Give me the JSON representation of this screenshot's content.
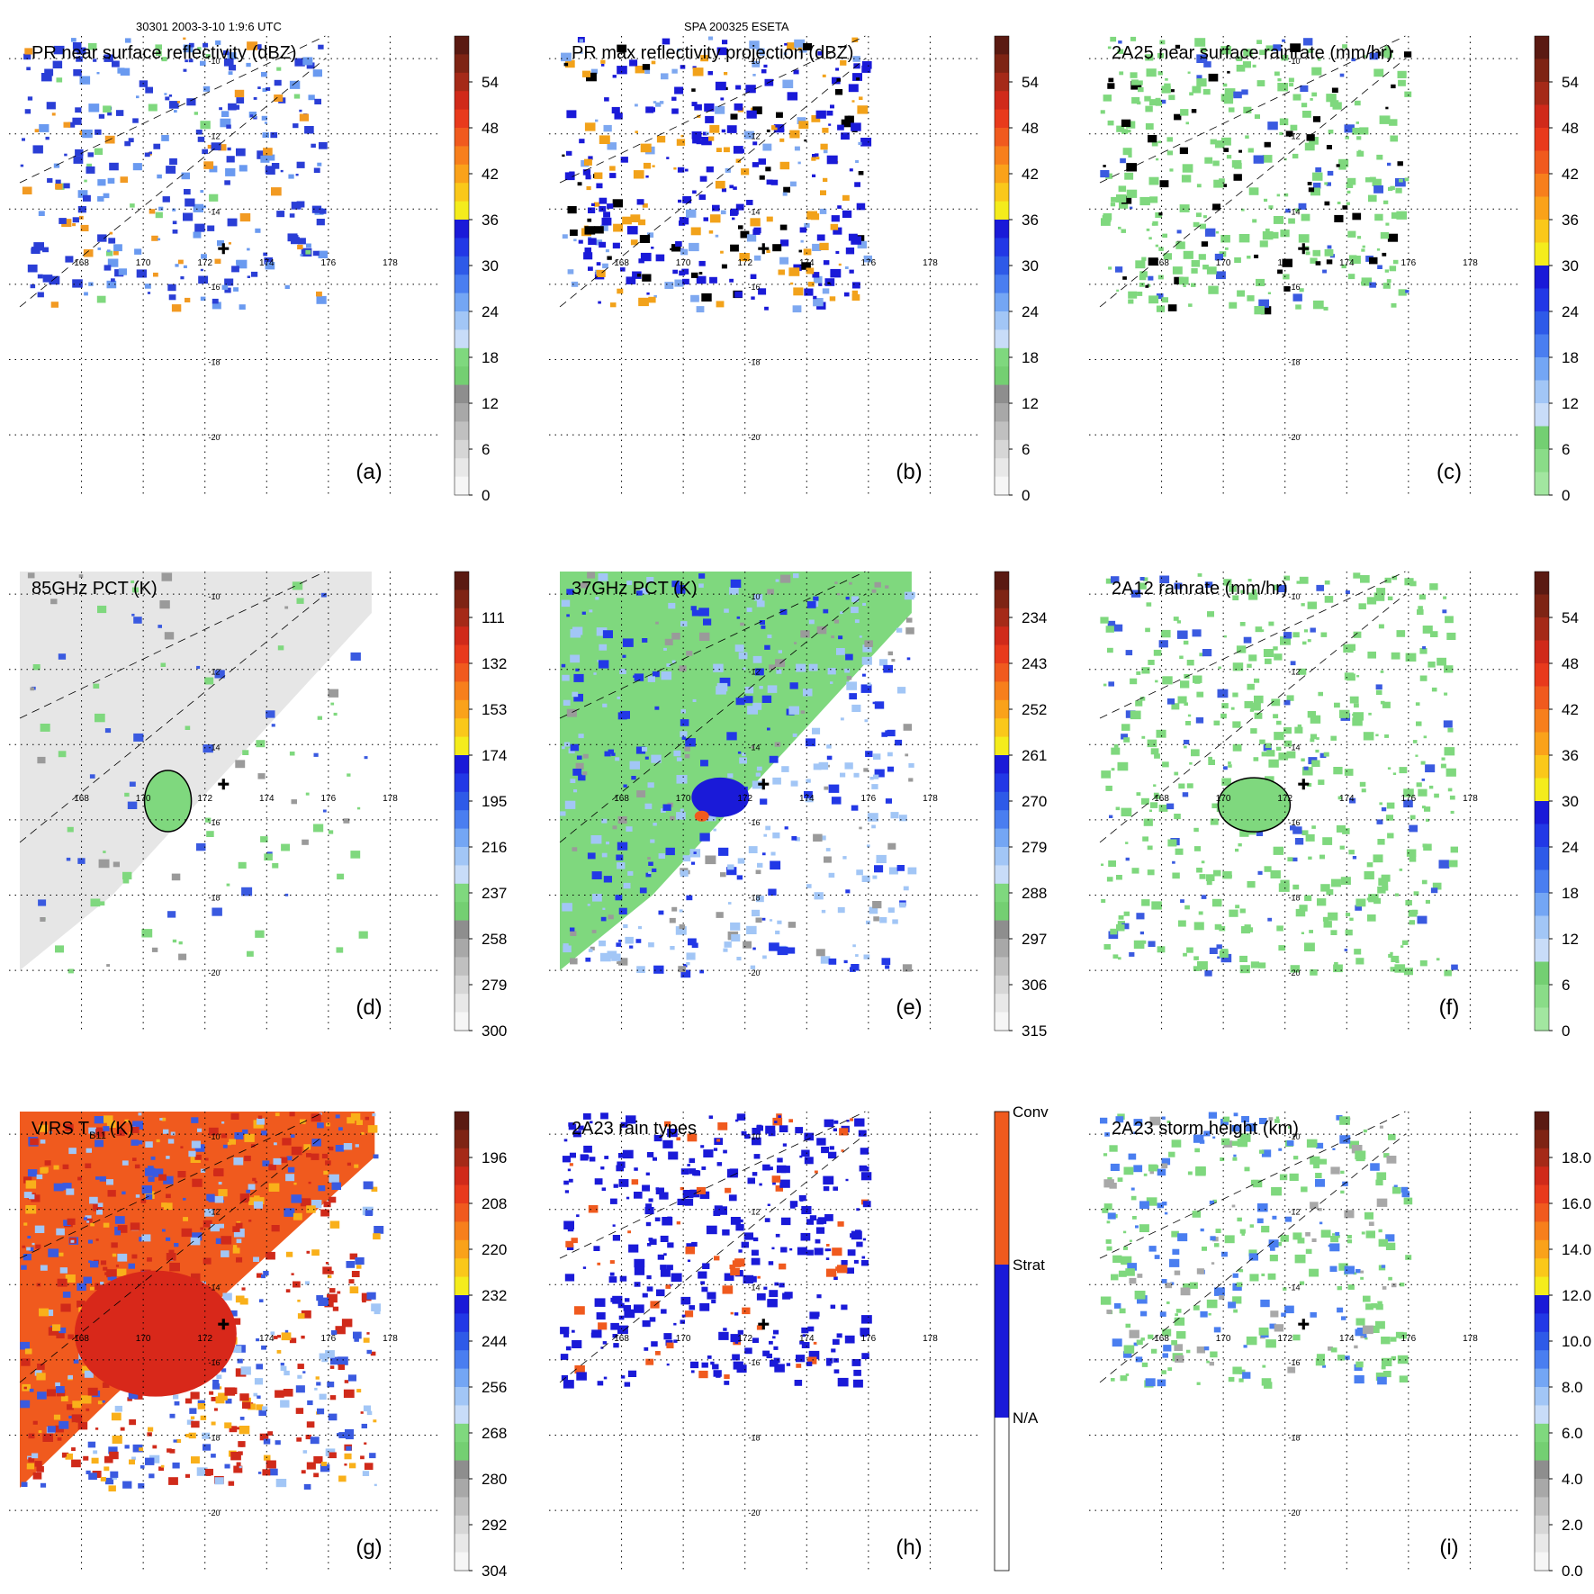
{
  "header": {
    "left": "30301 2003-3-10 1:9:6 UTC",
    "center": "SPA 200325 ESETA"
  },
  "map": {
    "lon_ticks": [
      "168",
      "170",
      "172",
      "174",
      "176",
      "178"
    ],
    "lat_ticks": [
      "-10",
      "-12",
      "-14",
      "-16",
      "-18",
      "-20"
    ],
    "storm_center_marker": "plus-icon"
  },
  "chart_data": [
    {
      "type": "heatmap",
      "id": "a",
      "panel_label": "(a)",
      "title": "PR near surface reflectivity (dBZ)",
      "field_extent": "pr_swath",
      "colorbar": {
        "style": "reflectivity",
        "labels": [
          "54",
          "48",
          "42",
          "36",
          "30",
          "24",
          "18",
          "12",
          "6",
          "0"
        ],
        "range": [
          0,
          60
        ]
      }
    },
    {
      "type": "heatmap",
      "id": "b",
      "panel_label": "(b)",
      "title": "PR max reflectivity projection (dBZ)",
      "field_extent": "pr_swath",
      "colorbar": {
        "style": "reflectivity",
        "labels": [
          "54",
          "48",
          "42",
          "36",
          "30",
          "24",
          "18",
          "12",
          "6",
          "0"
        ],
        "range": [
          0,
          60
        ]
      }
    },
    {
      "type": "heatmap",
      "id": "c",
      "panel_label": "(c)",
      "title": "2A25 near surface rainrate (mm/hr)",
      "field_extent": "pr_swath",
      "colorbar": {
        "style": "rainrate",
        "labels": [
          "54",
          "48",
          "42",
          "36",
          "30",
          "24",
          "18",
          "12",
          "6",
          "0"
        ],
        "range": [
          0,
          60
        ]
      }
    },
    {
      "type": "heatmap",
      "id": "d",
      "panel_label": "(d)",
      "title": "85GHz PCT (K)",
      "field_extent": "tmi_swath",
      "colorbar": {
        "style": "pct_inverted",
        "labels": [
          "111",
          "132",
          "153",
          "174",
          "195",
          "216",
          "237",
          "258",
          "279",
          "300"
        ],
        "range": [
          90,
          300
        ]
      }
    },
    {
      "type": "heatmap",
      "id": "e",
      "panel_label": "(e)",
      "title": "37GHz PCT (K)",
      "field_extent": "tmi_swath",
      "colorbar": {
        "style": "pct_inverted",
        "labels": [
          "234",
          "243",
          "252",
          "261",
          "270",
          "279",
          "288",
          "297",
          "306",
          "315"
        ],
        "range": [
          225,
          315
        ]
      }
    },
    {
      "type": "heatmap",
      "id": "f",
      "panel_label": "(f)",
      "title": "2A12 rainrate (mm/hr)",
      "field_extent": "tmi_swath",
      "colorbar": {
        "style": "rainrate",
        "labels": [
          "54",
          "48",
          "42",
          "36",
          "30",
          "24",
          "18",
          "12",
          "6",
          "0"
        ],
        "range": [
          0,
          60
        ]
      }
    },
    {
      "type": "heatmap",
      "id": "g",
      "panel_label": "(g)",
      "title": "VIRS T_{B11} (K)",
      "title_main": "VIRS T",
      "title_sub": "B11",
      "title_unit": "(K)",
      "field_extent": "virs_swath",
      "colorbar": {
        "style": "pct_inverted",
        "labels": [
          "196",
          "208",
          "220",
          "232",
          "244",
          "256",
          "268",
          "280",
          "292",
          "304"
        ],
        "range": [
          184,
          304
        ]
      }
    },
    {
      "type": "heatmap",
      "id": "h",
      "panel_label": "(h)",
      "title": "2A23 rain types",
      "field_extent": "pr_swath",
      "colorbar": {
        "style": "categorical",
        "labels": [
          "Conv",
          "Strat",
          "N/A"
        ],
        "categories": [
          "Conv",
          "Strat",
          "N/A"
        ]
      }
    },
    {
      "type": "heatmap",
      "id": "i",
      "panel_label": "(i)",
      "title": "2A23 storm height (km)",
      "field_extent": "pr_swath",
      "colorbar": {
        "style": "height",
        "labels": [
          "18.0",
          "16.0",
          "14.0",
          "12.0",
          "10.0",
          "8.0",
          "6.0",
          "4.0",
          "2.0",
          "0.0"
        ],
        "range": [
          0,
          20
        ]
      }
    }
  ],
  "colors": {
    "frame_bg": "#ffffff",
    "grid": "#000000",
    "swath_edge": "#000000"
  }
}
